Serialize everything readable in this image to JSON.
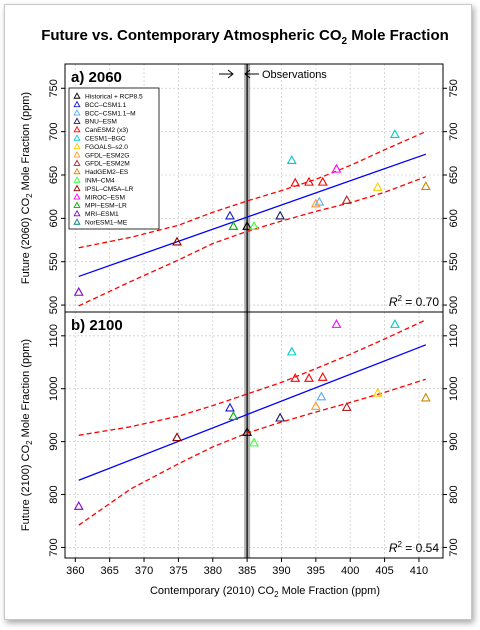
{
  "page": {
    "title_main": "Future vs. Contemporary Atmospheric CO",
    "title_sub": "2",
    "title_tail": " Mole Fraction",
    "x_axis_label_main": "Contemporary (2010) CO",
    "x_axis_label_sub": "2",
    "x_axis_label_tail": " Mole Fraction (ppm)",
    "observations_label": "Observations"
  },
  "legend": {
    "entries": [
      {
        "label": "Historical + RCP8.5",
        "color": "#000000"
      },
      {
        "label": "BCC–CSM1.1",
        "color": "#1a1acc"
      },
      {
        "label": "BCC–CSM1.1–M",
        "color": "#55aaff"
      },
      {
        "label": "BNU–ESM",
        "color": "#1a1a66"
      },
      {
        "label": "CanESM2 (x3)",
        "color": "#ff0000"
      },
      {
        "label": "CESM1–BGC",
        "color": "#00cccc"
      },
      {
        "label": "FGOALS–s2.0",
        "color": "#ffcc00"
      },
      {
        "label": "GFDL–ESM2G",
        "color": "#ff9933"
      },
      {
        "label": "GFDL–ESM2M",
        "color": "#b22222"
      },
      {
        "label": "HadGEM2–ES",
        "color": "#cc8800"
      },
      {
        "label": "INM–CM4",
        "color": "#33ff33"
      },
      {
        "label": "IPSL–CM5A–LR",
        "color": "#880000"
      },
      {
        "label": "MIROC–ESM",
        "color": "#ff00ff"
      },
      {
        "label": "MPI–ESM–LR",
        "color": "#00aa00"
      },
      {
        "label": "MRI–ESM1",
        "color": "#8800cc"
      },
      {
        "label": "NorESM1–ME",
        "color": "#008080"
      }
    ]
  },
  "chart_data": [
    {
      "type": "scatter",
      "panel_label": "a) 2060",
      "ylabel_main": "Future (2060) CO",
      "ylabel_sub": "2",
      "ylabel_tail": " Mole Fraction (ppm)",
      "xlabel": "Contemporary (2010) CO2 Mole Fraction (ppm)",
      "xlim": [
        358.5,
        413.5
      ],
      "ylim": [
        492,
        778
      ],
      "x_ticks": [
        360,
        365,
        370,
        375,
        380,
        385,
        390,
        395,
        400,
        405,
        410
      ],
      "y_ticks": [
        500,
        550,
        600,
        650,
        700,
        750
      ],
      "grid": true,
      "legend_position": "top-left",
      "observation_x": 385,
      "r2_label": "R",
      "r2_sup": "2",
      "r2_value": " = 0.70",
      "fit": {
        "x": [
          360.5,
          411
        ],
        "y": [
          533,
          674
        ]
      },
      "ci_upper": {
        "x": [
          360.5,
          368,
          375,
          380,
          385,
          390,
          395,
          400,
          405,
          411
        ],
        "y": [
          566,
          578,
          592,
          607,
          620,
          632,
          645,
          661,
          679,
          700
        ]
      },
      "ci_lower": {
        "x": [
          360.5,
          368,
          375,
          380,
          385,
          390,
          395,
          400,
          405,
          411
        ],
        "y": [
          499,
          527,
          552,
          571,
          585,
          597,
          608,
          618,
          630,
          648
        ]
      },
      "points": [
        {
          "model": "Historical + RCP8.5",
          "x": 385,
          "y": 591,
          "color": "#000000"
        },
        {
          "model": "BCC–CSM1.1",
          "x": 382.5,
          "y": 603,
          "color": "#1a1acc"
        },
        {
          "model": "BCC–CSM1.1–M",
          "x": 395.5,
          "y": 619,
          "color": "#55aaff"
        },
        {
          "model": "BNU–ESM",
          "x": 389.8,
          "y": 603,
          "color": "#1a1a66"
        },
        {
          "model": "CanESM2 (x3)",
          "x": 392,
          "y": 641,
          "color": "#ff0000"
        },
        {
          "model": "CanESM2 (x3)",
          "x": 394,
          "y": 642,
          "color": "#ff0000"
        },
        {
          "model": "CanESM2 (x3)",
          "x": 396,
          "y": 642,
          "color": "#ff0000"
        },
        {
          "model": "CESM1–BGC",
          "x": 391.5,
          "y": 667,
          "color": "#00cccc"
        },
        {
          "model": "CESM1–BGC",
          "x": 406.5,
          "y": 697,
          "color": "#00cccc"
        },
        {
          "model": "FGOALS–s2.0",
          "x": 404,
          "y": 636,
          "color": "#ffcc00"
        },
        {
          "model": "GFDL–ESM2G",
          "x": 395,
          "y": 617,
          "color": "#ff9933"
        },
        {
          "model": "GFDL–ESM2M",
          "x": 399.5,
          "y": 621,
          "color": "#b22222"
        },
        {
          "model": "HadGEM2–ES",
          "x": 411,
          "y": 637,
          "color": "#cc8800"
        },
        {
          "model": "INM–CM4",
          "x": 386,
          "y": 591,
          "color": "#33ff33"
        },
        {
          "model": "IPSL–CM5A–LR",
          "x": 374.8,
          "y": 573,
          "color": "#880000"
        },
        {
          "model": "MIROC–ESM",
          "x": 398,
          "y": 657,
          "color": "#ff00ff"
        },
        {
          "model": "MPI–ESM–LR",
          "x": 383,
          "y": 591,
          "color": "#00aa00"
        },
        {
          "model": "MRI–ESM1",
          "x": 360.5,
          "y": 515,
          "color": "#8800cc"
        }
      ]
    },
    {
      "type": "scatter",
      "panel_label": "b) 2100",
      "ylabel_main": "Future (2100) CO",
      "ylabel_sub": "2",
      "ylabel_tail": " Mole Fraction (ppm)",
      "xlabel": "Contemporary (2010) CO2 Mole Fraction (ppm)",
      "xlim": [
        358.5,
        413.5
      ],
      "ylim": [
        680,
        1145
      ],
      "x_ticks": [
        360,
        365,
        370,
        375,
        380,
        385,
        390,
        395,
        400,
        405,
        410
      ],
      "y_ticks": [
        700,
        800,
        900,
        1000,
        1100
      ],
      "grid": true,
      "observation_x": 385,
      "r2_label": "R",
      "r2_sup": "2",
      "r2_value": " = 0.54",
      "fit": {
        "x": [
          360.5,
          411
        ],
        "y": [
          827,
          1083
        ]
      },
      "ci_upper": {
        "x": [
          360.5,
          368,
          375,
          380,
          385,
          390,
          395,
          400,
          405,
          411
        ],
        "y": [
          912,
          928,
          948,
          968,
          990,
          1012,
          1038,
          1065,
          1094,
          1130
        ]
      },
      "ci_lower": {
        "x": [
          360.5,
          368,
          375,
          380,
          385,
          390,
          395,
          400,
          405,
          411
        ],
        "y": [
          742,
          810,
          858,
          890,
          916,
          937,
          956,
          974,
          993,
          1018
        ]
      },
      "points": [
        {
          "model": "Historical + RCP8.5",
          "x": 385,
          "y": 918,
          "color": "#000000"
        },
        {
          "model": "BCC–CSM1.1",
          "x": 382.5,
          "y": 964,
          "color": "#1a1acc"
        },
        {
          "model": "BCC–CSM1.1–M",
          "x": 395.8,
          "y": 985,
          "color": "#55aaff"
        },
        {
          "model": "BNU–ESM",
          "x": 389.8,
          "y": 945,
          "color": "#1a1a66"
        },
        {
          "model": "CanESM2 (x3)",
          "x": 392,
          "y": 1020,
          "color": "#ff0000"
        },
        {
          "model": "CanESM2 (x3)",
          "x": 394,
          "y": 1020,
          "color": "#ff0000"
        },
        {
          "model": "CanESM2 (x3)",
          "x": 396,
          "y": 1022,
          "color": "#ff0000"
        },
        {
          "model": "CESM1–BGC",
          "x": 391.5,
          "y": 1070,
          "color": "#00cccc"
        },
        {
          "model": "CESM1–BGC",
          "x": 406.5,
          "y": 1122,
          "color": "#00cccc"
        },
        {
          "model": "FGOALS–s2.0",
          "x": 404,
          "y": 992,
          "color": "#ffcc00"
        },
        {
          "model": "GFDL–ESM2G",
          "x": 395,
          "y": 967,
          "color": "#ff9933"
        },
        {
          "model": "GFDL–ESM2M",
          "x": 399.5,
          "y": 965,
          "color": "#b22222"
        },
        {
          "model": "HadGEM2–ES",
          "x": 411,
          "y": 983,
          "color": "#cc8800"
        },
        {
          "model": "INM–CM4",
          "x": 386,
          "y": 898,
          "color": "#33ff33"
        },
        {
          "model": "IPSL–CM5A–LR",
          "x": 374.8,
          "y": 908,
          "color": "#880000"
        },
        {
          "model": "MIROC–ESM",
          "x": 398,
          "y": 1122,
          "color": "#ff00ff"
        },
        {
          "model": "MPI–ESM–LR",
          "x": 383,
          "y": 948,
          "color": "#00aa00"
        },
        {
          "model": "MRI–ESM1",
          "x": 360.5,
          "y": 778,
          "color": "#8800cc"
        }
      ]
    }
  ]
}
